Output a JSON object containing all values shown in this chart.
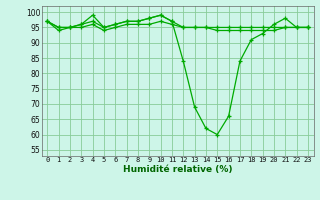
{
  "x": [
    0,
    1,
    2,
    3,
    4,
    5,
    6,
    7,
    8,
    9,
    10,
    11,
    12,
    13,
    14,
    15,
    16,
    17,
    18,
    19,
    20,
    21,
    22,
    23
  ],
  "line1": [
    97,
    94,
    95,
    96,
    99,
    95,
    96,
    97,
    97,
    98,
    99,
    97,
    84,
    69,
    62,
    60,
    66,
    84,
    91,
    93,
    96,
    98,
    95,
    95
  ],
  "line2": [
    97,
    95,
    95,
    96,
    97,
    95,
    96,
    97,
    97,
    98,
    99,
    97,
    95,
    95,
    95,
    95,
    95,
    95,
    95,
    95,
    95,
    95,
    95,
    95
  ],
  "line3": [
    97,
    95,
    95,
    95,
    96,
    94,
    95,
    96,
    96,
    96,
    97,
    96,
    95,
    95,
    95,
    94,
    94,
    94,
    94,
    94,
    94,
    95,
    95,
    95
  ],
  "line_color": "#00aa00",
  "bg_color": "#cdf5e8",
  "grid_color": "#88cc99",
  "xlabel": "Humidité relative (%)",
  "xlabel_color": "#006600",
  "ylim": [
    53,
    102
  ],
  "yticks": [
    55,
    60,
    65,
    70,
    75,
    80,
    85,
    90,
    95,
    100
  ],
  "xticks": [
    0,
    1,
    2,
    3,
    4,
    5,
    6,
    7,
    8,
    9,
    10,
    11,
    12,
    13,
    14,
    15,
    16,
    17,
    18,
    19,
    20,
    21,
    22,
    23
  ],
  "marker": "+"
}
